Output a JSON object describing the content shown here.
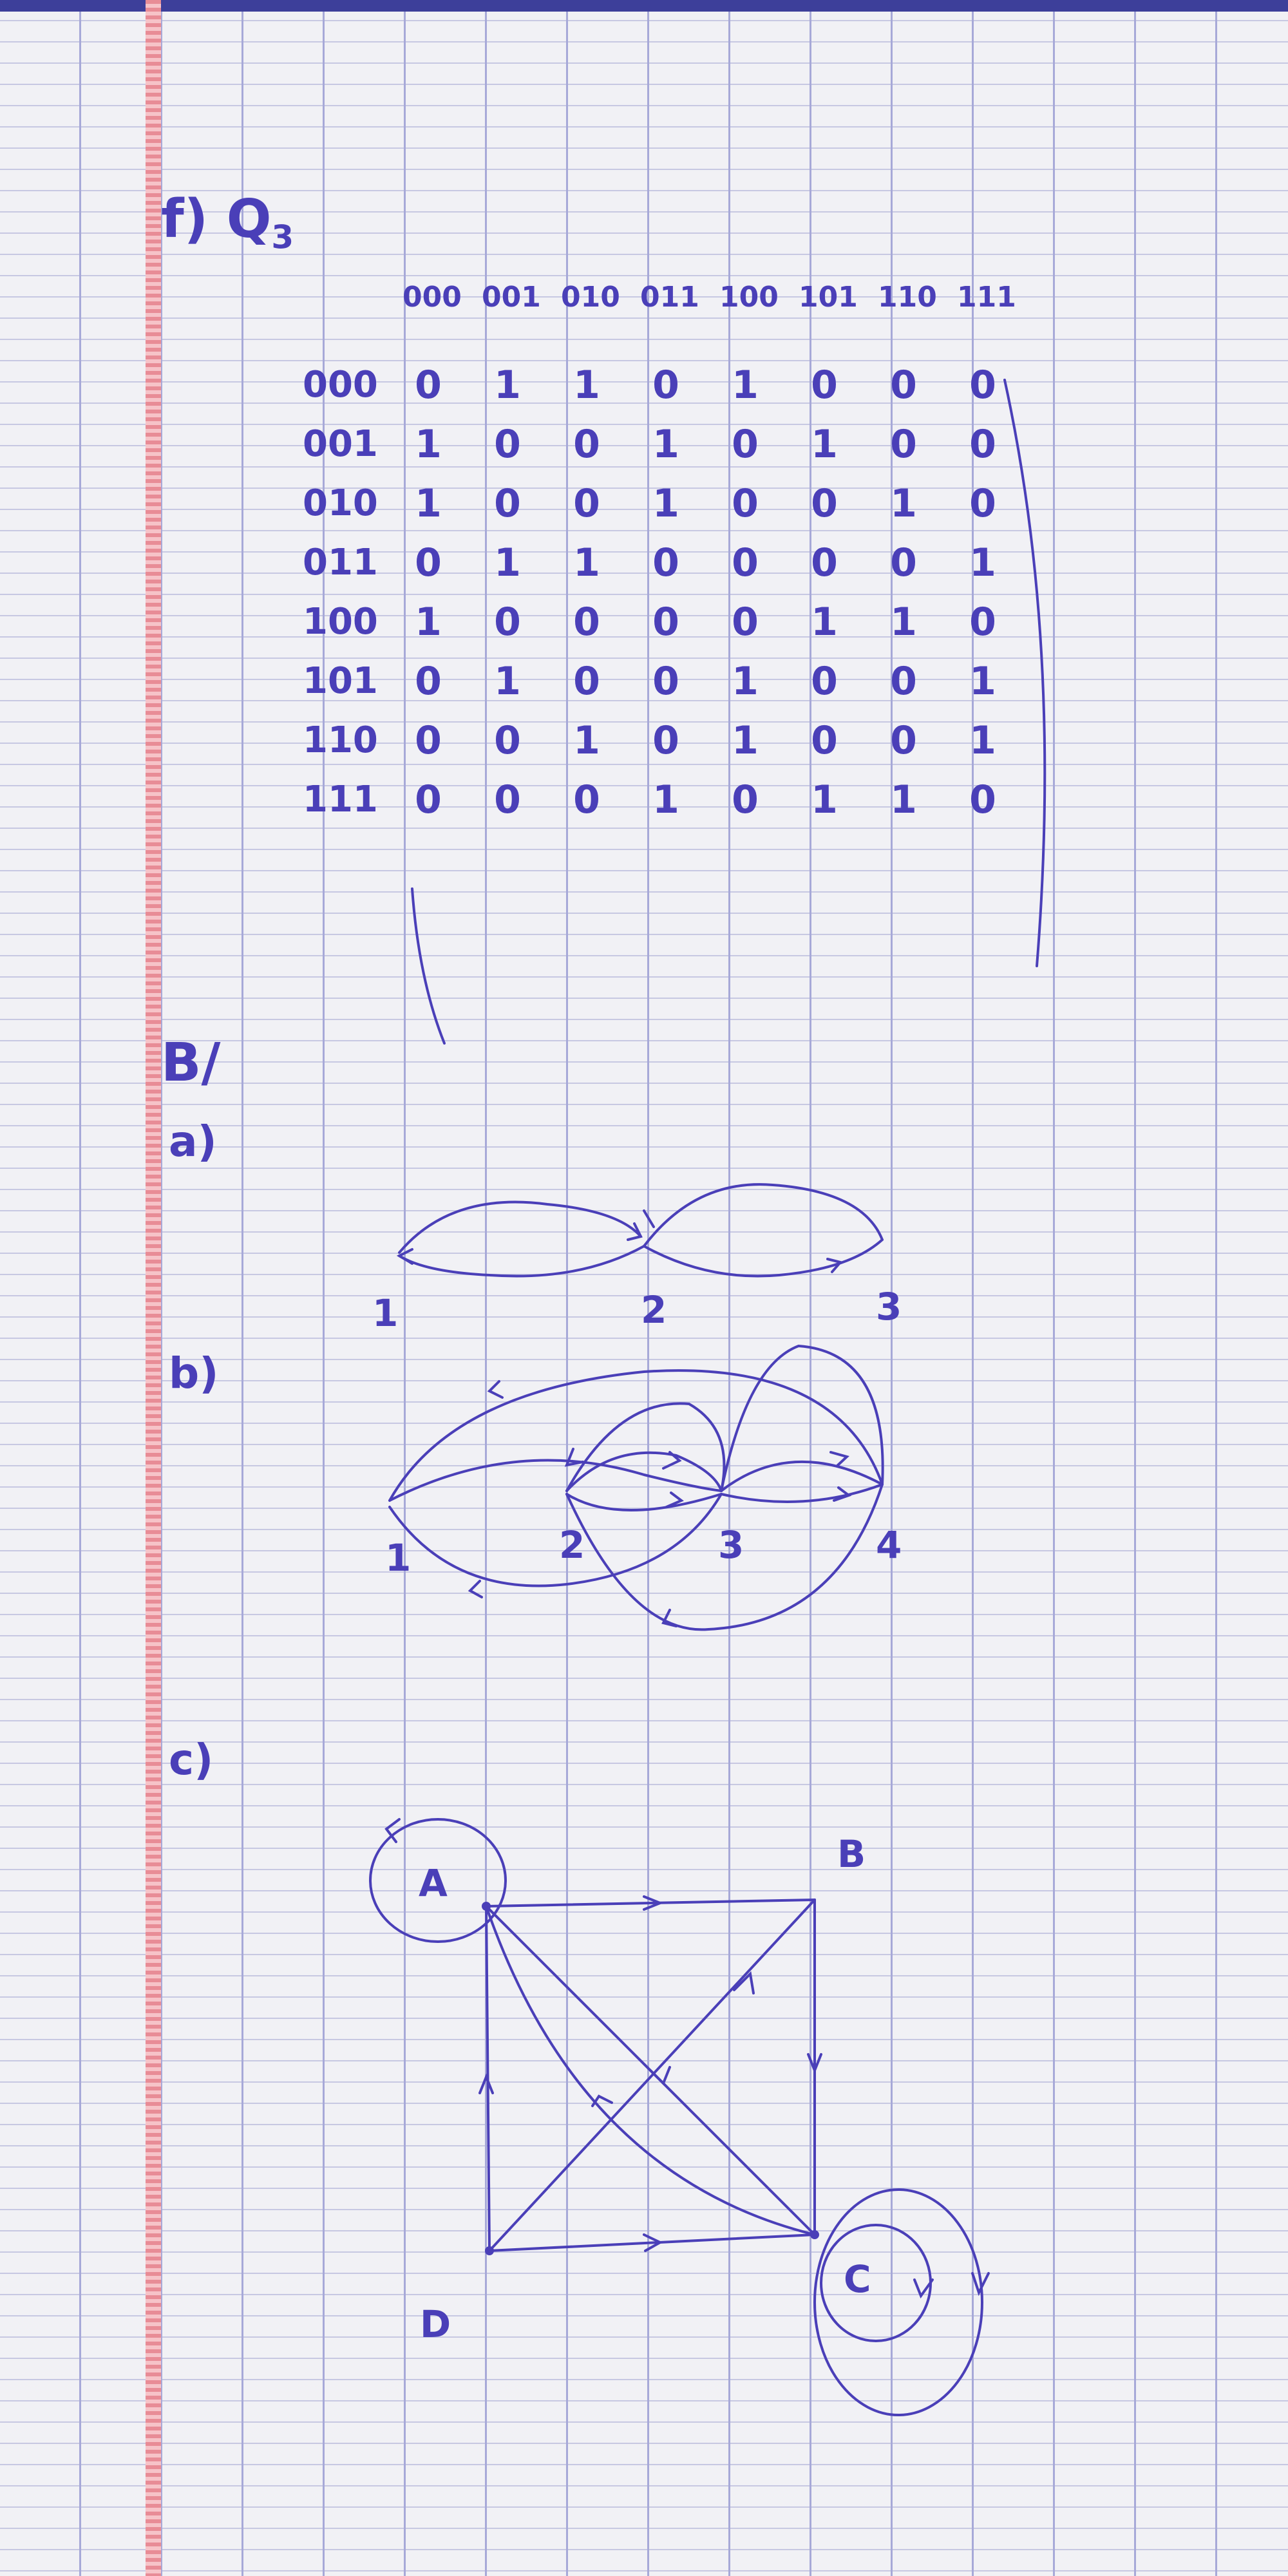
{
  "section_f": {
    "heading": "f) Q",
    "subscript": "3",
    "column_headers": [
      "000",
      "001",
      "010",
      "011",
      "100",
      "101",
      "110",
      "111"
    ],
    "row_headers": [
      "000",
      "001",
      "010",
      "011",
      "100",
      "101",
      "110",
      "111"
    ],
    "matrix": [
      [
        "0",
        "1",
        "1",
        "0",
        "1",
        "0",
        "0",
        "0"
      ],
      [
        "1",
        "0",
        "0",
        "1",
        "0",
        "1",
        "0",
        "0"
      ],
      [
        "1",
        "0",
        "0",
        "1",
        "0",
        "0",
        "1",
        "0"
      ],
      [
        "0",
        "1",
        "1",
        "0",
        "0",
        "0",
        "0",
        "1"
      ],
      [
        "1",
        "0",
        "0",
        "0",
        "0",
        "1",
        "1",
        "0"
      ],
      [
        "0",
        "1",
        "0",
        "0",
        "1",
        "0",
        "0",
        "1"
      ],
      [
        "0",
        "0",
        "1",
        "0",
        "1",
        "0",
        "0",
        "1"
      ],
      [
        "0",
        "0",
        "0",
        "1",
        "0",
        "1",
        "1",
        "0"
      ]
    ]
  },
  "section_b": {
    "heading": "B/",
    "part_a": {
      "label": "a)",
      "nodes": [
        "1",
        "2",
        "3"
      ]
    },
    "part_b": {
      "label": "b)",
      "nodes": [
        "1",
        "2",
        "3",
        "4"
      ]
    },
    "part_c": {
      "label": "c)",
      "nodes": [
        "A",
        "B",
        "C",
        "D"
      ]
    }
  }
}
